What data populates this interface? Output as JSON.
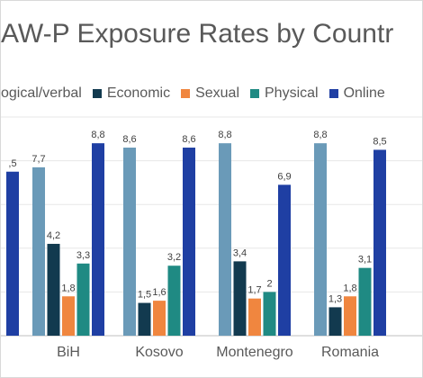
{
  "chart_data": {
    "type": "bar",
    "title": "AW-P Exposure Rates by Countr",
    "categories": [
      "",
      "BiH",
      "Kosovo",
      "Montenegro",
      "Romania"
    ],
    "series": [
      {
        "name": "ogical/verbal",
        "color": "#6a9ab8",
        "values": [
          null,
          7.7,
          8.6,
          8.8,
          8.8
        ]
      },
      {
        "name": "Economic",
        "color": "#123a4f",
        "values": [
          null,
          4.2,
          1.5,
          3.4,
          1.3
        ]
      },
      {
        "name": "Sexual",
        "color": "#f0863f",
        "values": [
          null,
          1.8,
          1.6,
          1.7,
          1.8
        ]
      },
      {
        "name": "Physical",
        "color": "#1f8a83",
        "values": [
          null,
          3.3,
          3.2,
          2.0,
          3.1
        ]
      },
      {
        "name": "Online",
        "color": "#1f3fa3",
        "values": [
          7.5,
          8.8,
          8.6,
          6.9,
          8.5
        ]
      }
    ],
    "data_labels": [
      [
        null,
        "7,7",
        "8,6",
        "8,8",
        "8,8"
      ],
      [
        null,
        "4,2",
        "1,5",
        "3,4",
        "1,3"
      ],
      [
        null,
        "1,8",
        "1,6",
        "1,7",
        "1,8"
      ],
      [
        null,
        "3,3",
        "3,2",
        "2",
        "3,1"
      ],
      [
        ",5",
        "8,8",
        "8,6",
        "6,9",
        "8,5"
      ]
    ],
    "ylim": [
      0,
      10
    ],
    "grid": true,
    "legend_position": "top"
  }
}
